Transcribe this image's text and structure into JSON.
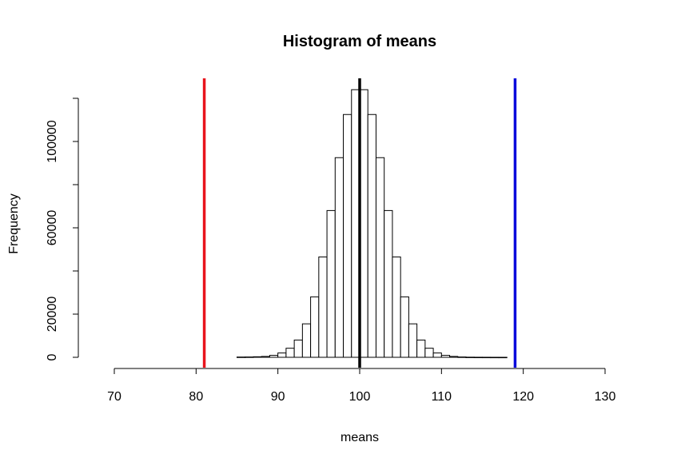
{
  "chart_data": {
    "type": "bar",
    "title": "Histogram of means",
    "xlabel": "means",
    "ylabel": "Frequency",
    "xlim": [
      70,
      130
    ],
    "ylim": [
      0,
      120000
    ],
    "x_ticks": [
      70,
      80,
      90,
      100,
      110,
      120,
      130
    ],
    "y_ticks": [
      0,
      20000,
      60000,
      100000
    ],
    "bin_width": 1,
    "bins": [
      {
        "start": 85,
        "count": 120
      },
      {
        "start": 86,
        "count": 150
      },
      {
        "start": 87,
        "count": 250
      },
      {
        "start": 88,
        "count": 400
      },
      {
        "start": 89,
        "count": 900
      },
      {
        "start": 90,
        "count": 2000
      },
      {
        "start": 91,
        "count": 4200
      },
      {
        "start": 92,
        "count": 8000
      },
      {
        "start": 93,
        "count": 15500
      },
      {
        "start": 94,
        "count": 28000
      },
      {
        "start": 95,
        "count": 46500
      },
      {
        "start": 96,
        "count": 68000
      },
      {
        "start": 97,
        "count": 92500
      },
      {
        "start": 98,
        "count": 112500
      },
      {
        "start": 99,
        "count": 124000
      },
      {
        "start": 100,
        "count": 124000
      },
      {
        "start": 101,
        "count": 112500
      },
      {
        "start": 102,
        "count": 92500
      },
      {
        "start": 103,
        "count": 68000
      },
      {
        "start": 104,
        "count": 46500
      },
      {
        "start": 105,
        "count": 28000
      },
      {
        "start": 106,
        "count": 15500
      },
      {
        "start": 107,
        "count": 8000
      },
      {
        "start": 108,
        "count": 4200
      },
      {
        "start": 109,
        "count": 2000
      },
      {
        "start": 110,
        "count": 900
      },
      {
        "start": 111,
        "count": 400
      },
      {
        "start": 112,
        "count": 150
      },
      {
        "start": 113,
        "count": 60
      },
      {
        "start": 114,
        "count": 30
      },
      {
        "start": 115,
        "count": 20
      },
      {
        "start": 116,
        "count": 10
      },
      {
        "start": 117,
        "count": 5
      }
    ],
    "vertical_lines": [
      {
        "x": 81,
        "color": "#e8141c"
      },
      {
        "x": 100,
        "color": "#000000"
      },
      {
        "x": 119,
        "color": "#0a0adc"
      }
    ],
    "grid": false
  }
}
